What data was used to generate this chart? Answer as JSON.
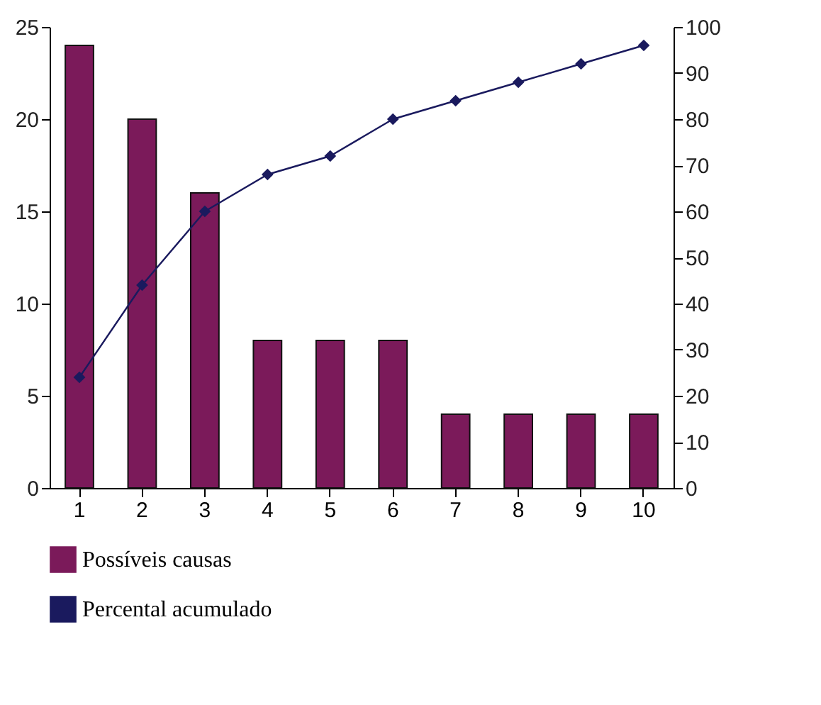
{
  "chart_data": {
    "type": "bar",
    "categories": [
      "1",
      "2",
      "3",
      "4",
      "5",
      "6",
      "7",
      "8",
      "9",
      "10"
    ],
    "series": [
      {
        "name": "Possíveis causas",
        "color": "#7b1a5a",
        "values": [
          24,
          20,
          16,
          8,
          8,
          8,
          4,
          4,
          4,
          4
        ]
      },
      {
        "name": "Percental acumulado",
        "type": "line",
        "axis": "y2",
        "color": "#1a1a5e",
        "values": [
          24,
          44,
          60,
          68,
          72,
          80,
          84,
          88,
          92,
          96
        ]
      }
    ],
    "ylim": [
      0,
      25
    ],
    "yticks": [
      0,
      5,
      10,
      15,
      20,
      25
    ],
    "y2lim": [
      0,
      100
    ],
    "y2ticks": [
      0,
      10,
      20,
      30,
      40,
      50,
      60,
      70,
      80,
      90,
      100
    ],
    "grid": false,
    "legend": "bottom",
    "marker": "diamond",
    "line_style": "solid"
  }
}
